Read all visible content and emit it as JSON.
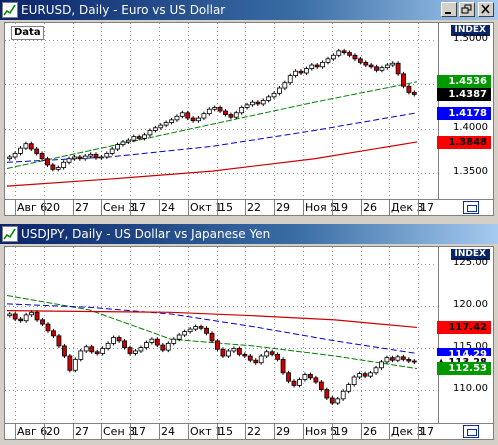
{
  "top": {
    "title": "EURUSD, Daily - Euro vs US Dollar",
    "data_tag": "Data",
    "index_label": "INDEX",
    "y_ticks": [
      "1.5000",
      "1.4500",
      "1.4000",
      "1.3500"
    ],
    "y_tick_values": [
      1.5,
      1.45,
      1.4,
      1.35
    ],
    "price_tags": [
      {
        "label": "1.4536",
        "value": 1.4536,
        "bg": "#009900",
        "fg": "#ffffff"
      },
      {
        "label": "1.4387",
        "value": 1.4387,
        "bg": "#000000",
        "fg": "#ffffff"
      },
      {
        "label": "1.4178",
        "value": 1.4178,
        "bg": "#0000ff",
        "fg": "#ffffff"
      },
      {
        "label": "1.3848",
        "value": 1.3848,
        "bg": "#ff0000",
        "fg": "#000000"
      }
    ],
    "x_labels": [
      "Авг 6",
      "20",
      "27",
      "Сен 3",
      "17",
      "24",
      "Окт 1",
      "15",
      "22",
      "29",
      "Ноя 5",
      "19",
      "26",
      "Дек 3",
      "17"
    ],
    "ylim": [
      1.325,
      1.515
    ]
  },
  "bottom": {
    "title": "USDJPY, Daily - US Dollar vs Japanese Yen",
    "index_label": "INDEX",
    "y_ticks": [
      "125.00",
      "120.00",
      "115.00",
      "110.00"
    ],
    "y_tick_values": [
      125,
      120,
      115,
      110
    ],
    "price_tags": [
      {
        "label": "117.42",
        "value": 117.42,
        "bg": "#ff0000",
        "fg": "#000000"
      },
      {
        "label": "114.29",
        "value": 114.29,
        "bg": "#0000ff",
        "fg": "#ffffff"
      },
      {
        "label": "113.28",
        "value": 113.28,
        "bg": "#ffffff",
        "fg": "#000000",
        "marker": "▲"
      },
      {
        "label": "112.53",
        "value": 112.53,
        "bg": "#009900",
        "fg": "#ffffff"
      }
    ],
    "x_labels": [
      "Авг 6",
      "20",
      "27",
      "Сен 3",
      "17",
      "24",
      "Окт 1",
      "15",
      "22",
      "29",
      "Ноя 5",
      "19",
      "26",
      "Дек 3",
      "17"
    ],
    "ylim": [
      106.5,
      126.5
    ]
  },
  "colors": {
    "up_candle": "#ffffff",
    "down_candle": "#cc0000",
    "ma_fast": "#008000",
    "ma_mid": "#0000cc",
    "ma_slow": "#cc0000",
    "titlebar": "#0a246a"
  },
  "chart_data": [
    {
      "type": "line",
      "title": "EURUSD, Daily - Euro vs US Dollar",
      "xlabel": "",
      "ylabel": "",
      "ylim": [
        1.325,
        1.515
      ],
      "grid": true,
      "series": [
        {
          "name": "",
          "role": "close",
          "values": [
            1.368,
            1.372,
            1.378,
            1.383,
            1.377,
            1.372,
            1.366,
            1.359,
            1.354,
            1.356,
            1.362,
            1.366,
            1.368,
            1.366,
            1.369,
            1.371,
            1.367,
            1.368,
            1.372,
            1.377,
            1.382,
            1.385,
            1.387,
            1.391,
            1.389,
            1.393,
            1.398,
            1.401,
            1.404,
            1.407,
            1.41,
            1.414,
            1.418,
            1.412,
            1.409,
            1.412,
            1.417,
            1.422,
            1.424,
            1.42,
            1.416,
            1.413,
            1.418,
            1.424,
            1.427,
            1.43,
            1.428,
            1.432,
            1.436,
            1.44,
            1.446,
            1.452,
            1.46,
            1.465,
            1.463,
            1.468,
            1.472,
            1.47,
            1.475,
            1.479,
            1.483,
            1.488,
            1.486,
            1.483,
            1.479,
            1.475,
            1.472,
            1.47,
            1.466,
            1.469,
            1.472,
            1.474,
            1.462,
            1.448,
            1.441,
            1.4387
          ]
        },
        {
          "name": "",
          "role": "ma-fast",
          "values": [
            1.355,
            1.38,
            1.405,
            1.43,
            1.453
          ]
        },
        {
          "name": "",
          "role": "ma-mid",
          "values": [
            1.362,
            1.368,
            1.38,
            1.398,
            1.418
          ]
        },
        {
          "name": "",
          "role": "ma-slow",
          "values": [
            1.335,
            1.343,
            1.352,
            1.366,
            1.385
          ]
        }
      ]
    },
    {
      "type": "line",
      "title": "USDJPY, Daily - US Dollar vs Japanese Yen",
      "xlabel": "",
      "ylabel": "",
      "ylim": [
        106.5,
        126.5
      ],
      "grid": true,
      "series": [
        {
          "name": "",
          "role": "close",
          "values": [
            119.0,
            118.4,
            118.2,
            118.9,
            119.2,
            118.3,
            117.8,
            117.0,
            116.4,
            115.2,
            114.0,
            112.3,
            113.6,
            114.6,
            115.1,
            114.5,
            114.3,
            114.9,
            115.5,
            116.2,
            115.8,
            115.0,
            114.3,
            114.6,
            115.0,
            115.6,
            116.0,
            115.3,
            114.7,
            115.5,
            116.0,
            116.5,
            116.9,
            117.2,
            117.5,
            117.3,
            116.7,
            115.8,
            114.8,
            114.0,
            114.6,
            114.9,
            114.2,
            114.0,
            113.5,
            113.2,
            114.0,
            114.5,
            114.2,
            113.6,
            112.0,
            111.0,
            110.5,
            111.2,
            111.8,
            111.4,
            110.9,
            110.0,
            109.0,
            108.4,
            108.9,
            109.8,
            110.6,
            111.5,
            111.9,
            111.6,
            112.0,
            112.6,
            113.3,
            113.8,
            113.5,
            113.9,
            113.6,
            113.4,
            113.28
          ]
        },
        {
          "name": "",
          "role": "ma-fast",
          "values": [
            121.2,
            119.5,
            116.0,
            115.2,
            114.0,
            112.5
          ]
        },
        {
          "name": "",
          "role": "ma-mid",
          "values": [
            120.2,
            119.8,
            119.0,
            117.5,
            115.8,
            114.3
          ]
        },
        {
          "name": "",
          "role": "ma-slow",
          "values": [
            119.4,
            119.3,
            119.2,
            118.8,
            118.3,
            117.4
          ]
        }
      ]
    }
  ]
}
